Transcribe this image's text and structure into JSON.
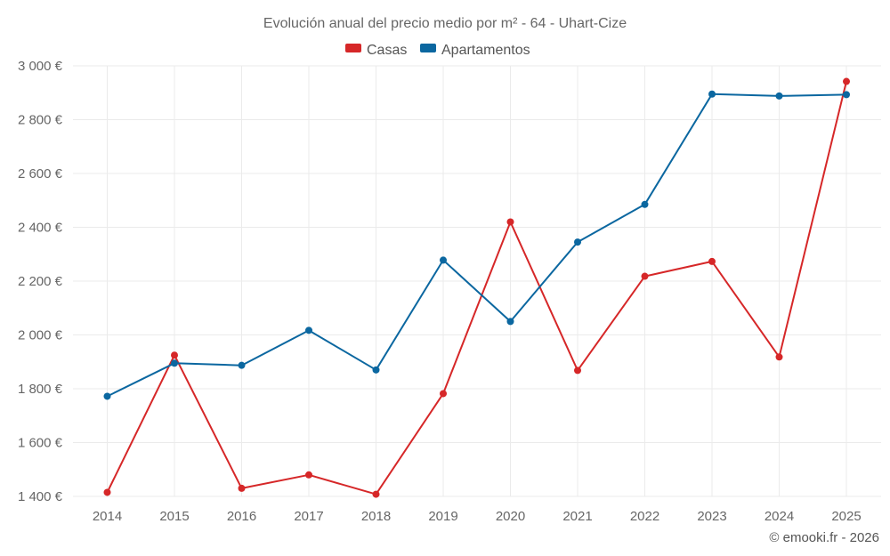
{
  "chart_data": {
    "type": "line",
    "title": "Evolución anual del precio medio por m² - 64 - Uhart-Cize",
    "x": [
      "2014",
      "2015",
      "2016",
      "2017",
      "2018",
      "2019",
      "2020",
      "2021",
      "2022",
      "2023",
      "2024",
      "2025"
    ],
    "series": [
      {
        "name": "Casas",
        "color": "#d62728",
        "values": [
          1415,
          1925,
          1430,
          1480,
          1408,
          1782,
          2420,
          1868,
          2218,
          2273,
          1918,
          2942
        ]
      },
      {
        "name": "Apartamentos",
        "color": "#0b67a0",
        "values": [
          1772,
          1895,
          1887,
          2017,
          1870,
          2278,
          2050,
          2345,
          2485,
          2895,
          2888,
          2893
        ]
      }
    ],
    "ylim": [
      1400,
      3000
    ],
    "yticks": [
      1400,
      1600,
      1800,
      2000,
      2200,
      2400,
      2600,
      2800,
      3000
    ],
    "ytick_labels": [
      "1 400 €",
      "1 600 €",
      "1 800 €",
      "2 000 €",
      "2 200 €",
      "2 400 €",
      "2 600 €",
      "2 800 €",
      "3 000 €"
    ],
    "xlabel": "",
    "ylabel": "",
    "grid": true,
    "legend_position": "top-center"
  },
  "credit": "© emooki.fr - 2026"
}
